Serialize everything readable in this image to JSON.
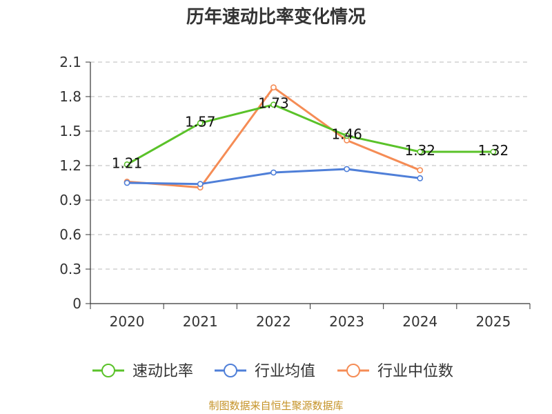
{
  "chart_data": {
    "type": "line",
    "title": "历年速动比率变化情况",
    "categories": [
      "2020",
      "2021",
      "2022",
      "2023",
      "2024",
      "2025"
    ],
    "ylim": [
      0,
      2.1
    ],
    "yticks": [
      "0",
      "0.3",
      "0.6",
      "0.9",
      "1.2",
      "1.5",
      "1.8",
      "2.1"
    ],
    "grid": true,
    "legend_position": "bottom",
    "series": [
      {
        "name": "速动比率",
        "color": "#5ac229",
        "values": [
          1.21,
          1.57,
          1.73,
          1.46,
          1.32,
          1.32
        ],
        "labels": [
          "1.21",
          "1.57",
          "1.73",
          "1.46",
          "1.32",
          "1.32"
        ]
      },
      {
        "name": "行业均值",
        "color": "#4f7fd8",
        "values": [
          1.05,
          1.04,
          1.14,
          1.17,
          1.09,
          null
        ]
      },
      {
        "name": "行业中位数",
        "color": "#f58c55",
        "values": [
          1.06,
          1.01,
          1.88,
          1.42,
          1.16,
          null
        ]
      }
    ]
  },
  "footer": "制图数据来自恒生聚源数据库"
}
